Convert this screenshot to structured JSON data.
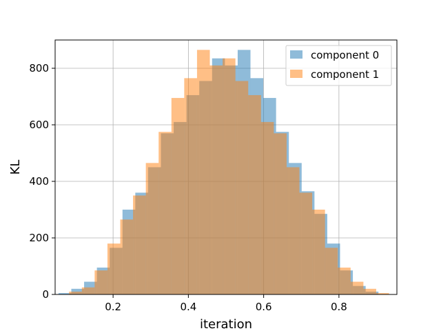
{
  "chart_data": {
    "type": "histogram",
    "title": "",
    "xlabel": "iteration",
    "ylabel": "KL",
    "xlim": [
      0.046,
      0.954
    ],
    "ylim": [
      0,
      900
    ],
    "x_ticks": [
      "0.2",
      "0.4",
      "0.6",
      "0.8"
    ],
    "x_tick_values": [
      0.2,
      0.4,
      0.6,
      0.8
    ],
    "y_ticks": [
      "0",
      "200",
      "400",
      "600",
      "800"
    ],
    "y_tick_values": [
      0,
      200,
      400,
      600,
      800
    ],
    "grid": true,
    "legend_position": "top-right",
    "alpha": 0.5,
    "series": [
      {
        "name": "component 0",
        "color": "#1f77b4",
        "bin_edges": [
          0.055,
          0.089,
          0.123,
          0.157,
          0.191,
          0.225,
          0.259,
          0.293,
          0.327,
          0.361,
          0.395,
          0.429,
          0.463,
          0.497,
          0.531,
          0.565,
          0.599,
          0.633,
          0.667,
          0.701,
          0.735,
          0.769,
          0.803,
          0.837,
          0.871,
          0.905
        ],
        "counts": [
          5,
          20,
          45,
          95,
          165,
          300,
          360,
          450,
          570,
          610,
          705,
          755,
          835,
          810,
          865,
          765,
          695,
          575,
          465,
          365,
          285,
          180,
          85,
          30,
          10
        ]
      },
      {
        "name": "component 1",
        "color": "#ff7f0e",
        "bin_edges": [
          0.083,
          0.117,
          0.151,
          0.185,
          0.219,
          0.253,
          0.287,
          0.321,
          0.355,
          0.389,
          0.423,
          0.457,
          0.491,
          0.525,
          0.559,
          0.593,
          0.627,
          0.661,
          0.695,
          0.729,
          0.763,
          0.797,
          0.831,
          0.865,
          0.899,
          0.933
        ],
        "counts": [
          10,
          25,
          85,
          180,
          265,
          350,
          465,
          575,
          695,
          765,
          865,
          810,
          835,
          755,
          705,
          610,
          570,
          450,
          360,
          300,
          165,
          95,
          45,
          20,
          5
        ]
      }
    ]
  }
}
